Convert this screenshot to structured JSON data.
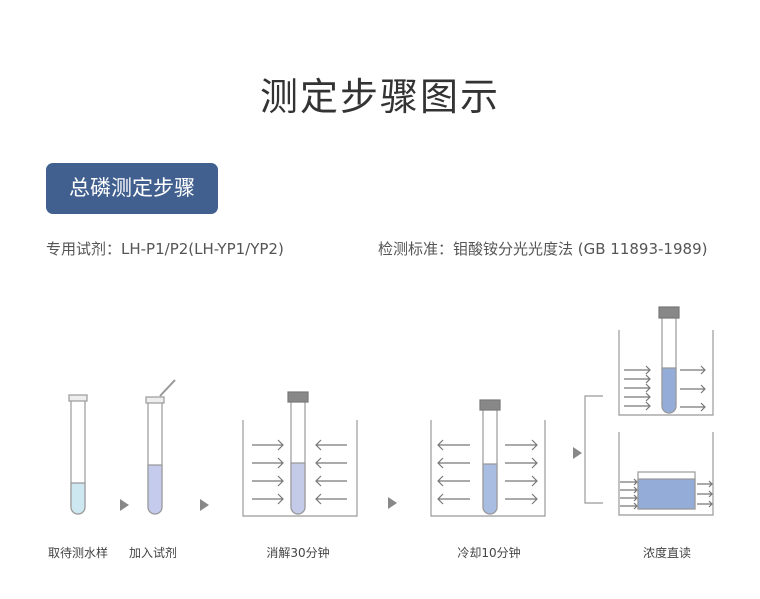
{
  "title": "测定步骤图示",
  "badge": "总磷测定步骤",
  "reagent": "专用试剂：LH-P1/P2(LH-YP1/YP2)",
  "standard": "检测标准：钼酸铵分光光度法 (GB 11893-1989)",
  "steps": [
    "取待测水样",
    "加入试剂",
    "消解30分钟",
    "冷却10分钟",
    "浓度直读"
  ],
  "colors": {
    "badge": "#41608f",
    "sample": "#cde8f0",
    "reagent": "#c5cbec",
    "digested": "#c3cbe9",
    "cooled": "#a9bde3",
    "reading": "#93acd8"
  }
}
